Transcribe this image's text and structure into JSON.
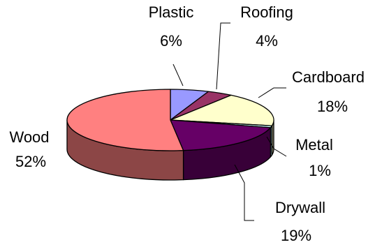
{
  "chart_data": {
    "type": "pie",
    "three_d": true,
    "legend": "none",
    "slices": [
      {
        "name": "Plastic",
        "value": 6,
        "label": "6%",
        "color": "#9999ff"
      },
      {
        "name": "Roofing",
        "value": 4,
        "label": "4%",
        "color": "#993366"
      },
      {
        "name": "Cardboard",
        "value": 18,
        "label": "18%",
        "color": "#ffffcc"
      },
      {
        "name": "Metal",
        "value": 1,
        "label": "1%",
        "color": "#ccffff"
      },
      {
        "name": "Drywall",
        "value": 19,
        "label": "19%",
        "color": "#660066"
      },
      {
        "name": "Wood",
        "value": 52,
        "label": "52%",
        "color": "#ff8080"
      }
    ]
  }
}
